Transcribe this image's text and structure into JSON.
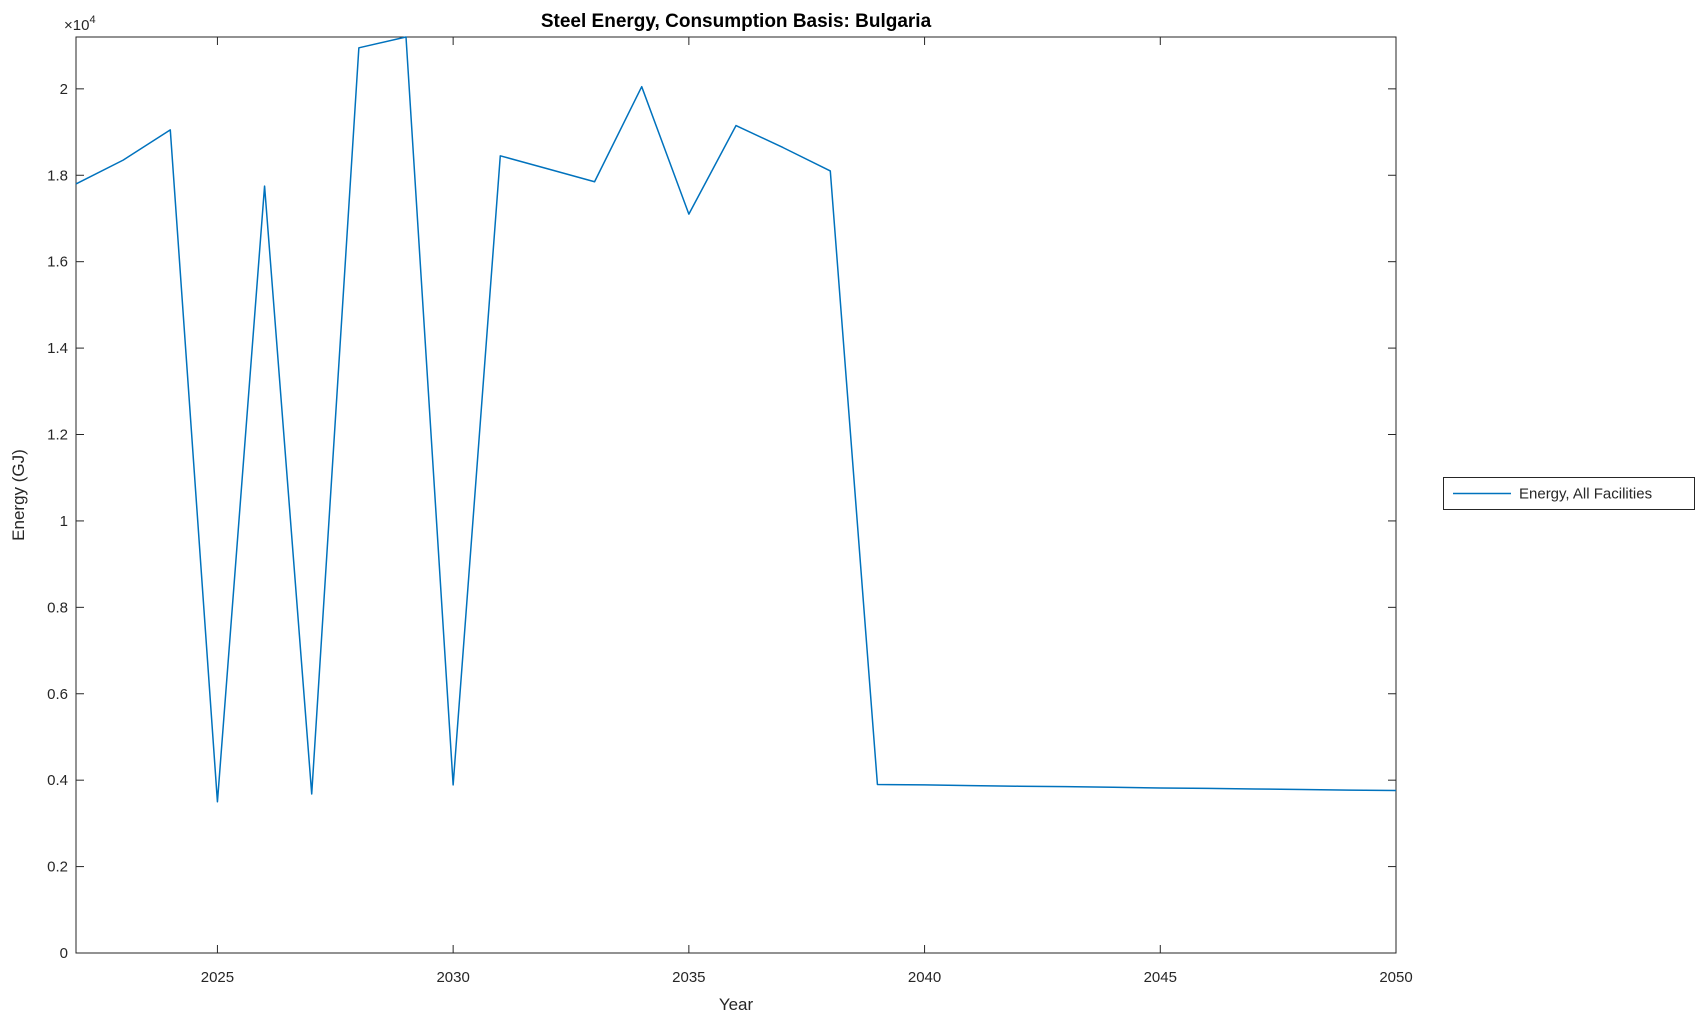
{
  "chart_data": {
    "type": "line",
    "title": "Steel Energy, Consumption Basis: Bulgaria",
    "xlabel": "Year",
    "ylabel": "Energy (GJ)",
    "y_axis_multiplier": {
      "base": "×10",
      "exponent": "4"
    },
    "xlim": [
      2022,
      2050
    ],
    "ylim": [
      0,
      21200
    ],
    "xticks": [
      2025,
      2030,
      2035,
      2040,
      2045,
      2050
    ],
    "yticks": [
      0,
      2000,
      4000,
      6000,
      8000,
      10000,
      12000,
      14000,
      16000,
      18000,
      20000
    ],
    "ytick_labels": [
      "0",
      "0.2",
      "0.4",
      "0.6",
      "0.8",
      "1",
      "1.2",
      "1.4",
      "1.6",
      "1.8",
      "2"
    ],
    "grid": false,
    "x": [
      2022,
      2023,
      2024,
      2025,
      2026,
      2027,
      2028,
      2029,
      2030,
      2031,
      2032,
      2033,
      2034,
      2035,
      2036,
      2037,
      2038,
      2039,
      2040,
      2041,
      2042,
      2043,
      2044,
      2045,
      2046,
      2047,
      2048,
      2049,
      2050
    ],
    "series": [
      {
        "name": "Energy, All Facilities",
        "color": "#0072BD",
        "values": [
          17800,
          18350,
          19050,
          3500,
          17750,
          3680,
          20950,
          21200,
          3890,
          18450,
          18150,
          17850,
          20050,
          17100,
          19150,
          18640,
          18100,
          3900,
          3890,
          3875,
          3860,
          3850,
          3835,
          3820,
          3810,
          3795,
          3785,
          3770,
          3760
        ]
      }
    ],
    "legend": {
      "position": "eastoutside",
      "entries": [
        {
          "label": "Energy, All Facilities",
          "color": "#0072BD"
        }
      ]
    }
  },
  "colors": {
    "line": "#0072BD",
    "axis": "#262626",
    "background": "#ffffff"
  }
}
